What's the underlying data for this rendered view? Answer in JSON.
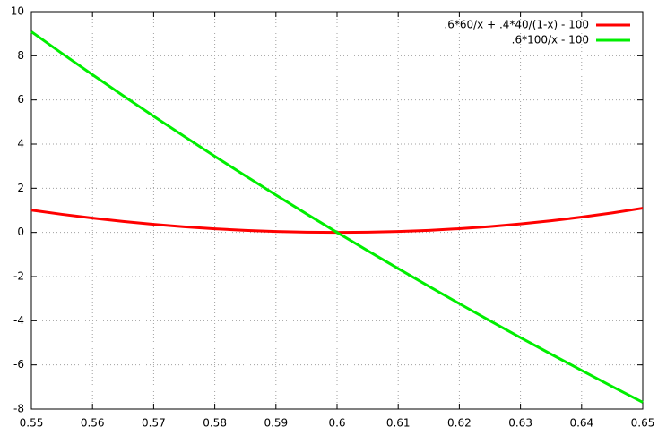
{
  "chart_data": {
    "type": "line",
    "x": [
      0.55,
      0.555,
      0.56,
      0.565,
      0.57,
      0.575,
      0.58,
      0.585,
      0.59,
      0.595,
      0.6,
      0.605,
      0.61,
      0.615,
      0.62,
      0.625,
      0.63,
      0.635,
      0.64,
      0.645,
      0.65
    ],
    "series": [
      {
        "name": ".6*60/x + .4*40/(1-x) - 100",
        "color": "#ff0000",
        "values": [
          1.01,
          0.82,
          0.649,
          0.498,
          0.367,
          0.256,
          0.164,
          0.093,
          0.041,
          0.01,
          0,
          0.01,
          0.042,
          0.095,
          0.17,
          0.267,
          0.386,
          0.529,
          0.694,
          0.884,
          1.099
        ]
      },
      {
        "name": ".6*100/x - 100",
        "color": "#00ee00",
        "values": [
          9.091,
          8.108,
          7.143,
          6.195,
          5.263,
          4.348,
          3.448,
          2.564,
          1.695,
          0.84,
          0,
          -0.826,
          -1.639,
          -2.439,
          -3.226,
          -4,
          -4.762,
          -5.512,
          -6.25,
          -6.977,
          -7.692
        ]
      }
    ],
    "xlim": [
      0.55,
      0.65
    ],
    "xticks": [
      0.55,
      0.56,
      0.57,
      0.58,
      0.59,
      0.6,
      0.61,
      0.62,
      0.63,
      0.64,
      0.65
    ],
    "ylim": [
      -8,
      10
    ],
    "yticks": [
      -8,
      -6,
      -4,
      -2,
      0,
      2,
      4,
      6,
      8,
      10
    ],
    "grid": true,
    "legend": "top-right"
  }
}
